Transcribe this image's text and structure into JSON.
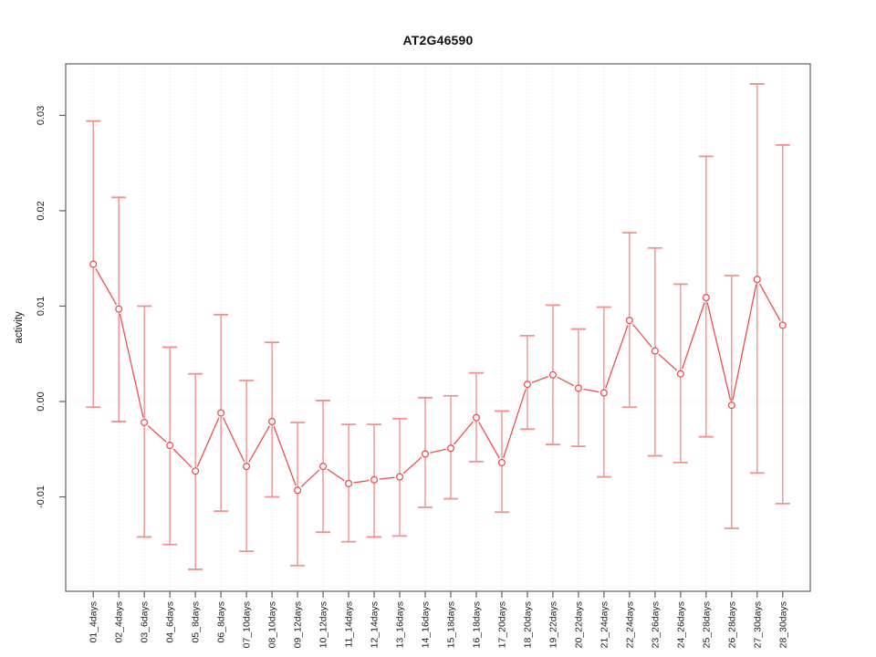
{
  "figure": {
    "title": "AT2G46590",
    "background_color": "#ffffff"
  },
  "chart_data": {
    "type": "line",
    "title": "AT2G46590",
    "xlabel": "",
    "ylabel": "activity",
    "legend": "none",
    "grid": "vertical dotted gridlines at each category; dotted horizontal line at y=0 only",
    "marker": "open-circle",
    "error_bars": true,
    "categories": [
      "01_4days",
      "02_4days",
      "03_6days",
      "04_6days",
      "05_8days",
      "06_8days",
      "07_10days",
      "08_10days",
      "09_12days",
      "10_12days",
      "11_14days",
      "12_14days",
      "13_16days",
      "14_16days",
      "15_18days",
      "16_18days",
      "17_20days",
      "18_20days",
      "19_22days",
      "20_22days",
      "21_24days",
      "22_24days",
      "23_26days",
      "24_26days",
      "25_28days",
      "26_28days",
      "27_30days",
      "28_30days"
    ],
    "series": [
      {
        "name": "activity",
        "values": [
          0.0144,
          0.0097,
          -0.0022,
          -0.0046,
          -0.0073,
          -0.0012,
          -0.0068,
          -0.0021,
          -0.0093,
          -0.0068,
          -0.0086,
          -0.0082,
          -0.0079,
          -0.0055,
          -0.0049,
          -0.0017,
          -0.0064,
          0.0018,
          0.0028,
          0.0014,
          0.0009,
          0.0085,
          0.0053,
          0.0029,
          0.0109,
          -0.0004,
          0.0128,
          0.008
        ]
      }
    ],
    "error_upper": [
      0.0294,
      0.0214,
      0.01,
      0.0057,
      0.0029,
      0.0091,
      0.0022,
      0.0062,
      -0.0022,
      0.0001,
      -0.0024,
      -0.0024,
      -0.0018,
      0.0004,
      0.0006,
      0.003,
      -0.001,
      0.0069,
      0.0101,
      0.0076,
      0.0099,
      0.0177,
      0.0161,
      0.0123,
      0.0257,
      0.0132,
      0.0333,
      0.0269
    ],
    "error_lower": [
      -0.0006,
      -0.0021,
      -0.0142,
      -0.015,
      -0.0176,
      -0.0115,
      -0.0157,
      -0.01,
      -0.0172,
      -0.0137,
      -0.0147,
      -0.0142,
      -0.0141,
      -0.0111,
      -0.0102,
      -0.0063,
      -0.0116,
      -0.0029,
      -0.0045,
      -0.0047,
      -0.0079,
      -0.0006,
      -0.0057,
      -0.0064,
      -0.0037,
      -0.0133,
      -0.0075,
      -0.0107
    ],
    "ylim": [
      -0.0199,
      0.0354
    ],
    "yticks": [
      -0.01,
      0,
      0.01,
      0.02,
      0.03
    ],
    "ytick_labels": [
      "-0.01",
      "0.00",
      "0.01",
      "0.02",
      "0.03"
    ],
    "colors": {
      "line": "#ee4f4c",
      "point_stroke": "#ee4f4c",
      "point_fill": "#ffffff",
      "error_bar": "#f58f8d",
      "grid": "#dedede",
      "axis_box": "#5f5f5f",
      "tick": "#5f5f5f",
      "text": "#1c1c1c"
    }
  }
}
